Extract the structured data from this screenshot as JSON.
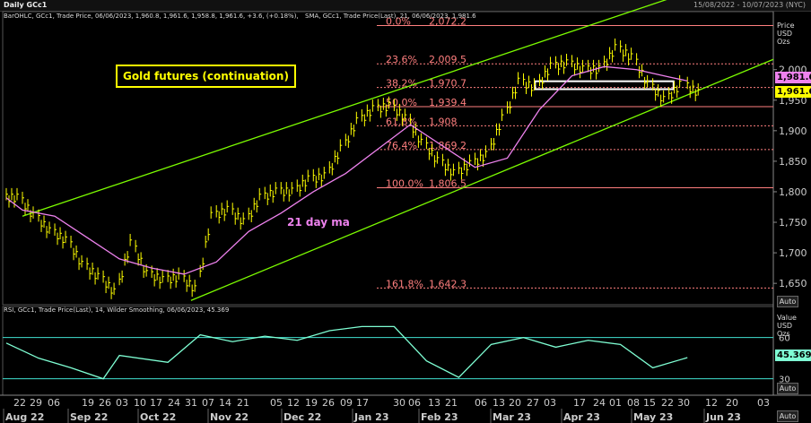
{
  "window": {
    "title": "Daily GCc1",
    "date_range": "15/08/2022 - 10/07/2023 (NYC)"
  },
  "price_panel": {
    "legend_bar": "BarOHLC, GCc1, Trade Price, 06/06/2023, 1,960.8, 1,961.6, 1,958.8, 1,961.6, +3.6, (+0.18%),",
    "legend_sma": "SMA, GCc1, Trade Price(Last), 21, 06/06/2023, 1,981.6",
    "axis_title": [
      "Price",
      "USD",
      "Ozs"
    ],
    "sma_value_badge": "1,981.6",
    "price_value_badge": "1,961.6",
    "auto_label": "Auto",
    "annotation": "Gold futures (continuation)",
    "ma_label": "21 day ma"
  },
  "rsi_panel": {
    "legend": "RSI, GCc1, Trade Price(Last), 14, Wilder Smoothing, 06/06/2023, 45.369",
    "axis_title": [
      "Value",
      "USD",
      "Ozs"
    ],
    "value_badge": "45.369",
    "auto_label": "Auto"
  },
  "x_auto_label": "Auto",
  "colors": {
    "price_bars": "#ffff00",
    "sma": "#ee82ee",
    "channel": "#7CFC00",
    "fib": "#ff7f7f",
    "rsi": "#7fffd4",
    "rsi_levels": "#40e0d0"
  },
  "chart_data": [
    {
      "type": "ohlc",
      "title": "Gold futures (continuation)",
      "y_ticks": [
        1650,
        1700,
        1750,
        1800,
        1850,
        1900,
        1950,
        2000
      ],
      "y_tick_labels": [
        "1,650",
        "1,700",
        "1,750",
        "1,800",
        "1,850",
        "1,900",
        "1,950",
        "2,000"
      ],
      "ylim": [
        1615,
        2095
      ],
      "x_day_labels": [
        "22",
        "29",
        "06",
        "19",
        "26",
        "03",
        "10",
        "17",
        "24",
        "31",
        "07",
        "14",
        "21",
        "05",
        "12",
        "19",
        "26",
        "09",
        "17",
        "30",
        "06",
        "13",
        "21",
        "06",
        "13",
        "20",
        "27",
        "03",
        "17",
        "24",
        "01",
        "08",
        "15",
        "22",
        "30",
        "12",
        "20",
        "03"
      ],
      "x_month_labels": [
        "Aug 22",
        "Sep 22",
        "Oct 22",
        "Nov 22",
        "Dec 22",
        "Jan 23",
        "Feb 23",
        "Mar 23",
        "Apr 23",
        "May 23",
        "Jun 23"
      ],
      "fibonacci": [
        {
          "label": "0.0%",
          "value": 2072.2,
          "value_text": "2,072.2"
        },
        {
          "label": "23.6%",
          "value": 2009.5,
          "value_text": "2,009.5"
        },
        {
          "label": "38.2%",
          "value": 1970.7,
          "value_text": "1,970.7"
        },
        {
          "label": "50.0%",
          "value": 1939.4,
          "value_text": "1,939.4"
        },
        {
          "label": "61.8%",
          "value": 1908,
          "value_text": "1,908"
        },
        {
          "label": "76.4%",
          "value": 1869.2,
          "value_text": "1,869.2"
        },
        {
          "label": "100.0%",
          "value": 1806.5,
          "value_text": "1,806.5"
        },
        {
          "label": "161.8%",
          "value": 1642.3,
          "value_text": "1,642.3"
        }
      ],
      "channel": {
        "upper": [
          [
            "2022-08-22",
            1760
          ],
          [
            "2023-05-10",
            2092
          ]
        ],
        "lower": [
          [
            "2022-11-03",
            1622
          ],
          [
            "2023-06-12",
            1968
          ]
        ]
      },
      "resistance_box": {
        "x_from": "2023-04-01",
        "x_to": "2023-05-31",
        "y_from": 1968,
        "y_to": 1981
      },
      "series": [
        {
          "name": "BarOHLC",
          "x": [
            "2022-08-15",
            "2022-08-22",
            "2022-08-29",
            "2022-09-05",
            "2022-09-12",
            "2022-09-19",
            "2022-09-26",
            "2022-10-03",
            "2022-10-10",
            "2022-10-17",
            "2022-10-24",
            "2022-10-31",
            "2022-11-07",
            "2022-11-14",
            "2022-11-21",
            "2022-11-28",
            "2022-12-05",
            "2022-12-12",
            "2022-12-19",
            "2022-12-26",
            "2023-01-02",
            "2023-01-09",
            "2023-01-16",
            "2023-01-23",
            "2023-01-30",
            "2023-02-06",
            "2023-02-13",
            "2023-02-20",
            "2023-02-27",
            "2023-03-06",
            "2023-03-13",
            "2023-03-20",
            "2023-03-27",
            "2023-04-03",
            "2023-04-10",
            "2023-04-17",
            "2023-04-24",
            "2023-05-01",
            "2023-05-08",
            "2023-05-15",
            "2023-05-22",
            "2023-05-29",
            "2023-06-06"
          ],
          "close": [
            1790,
            1760,
            1735,
            1720,
            1680,
            1660,
            1635,
            1715,
            1665,
            1655,
            1660,
            1640,
            1760,
            1770,
            1750,
            1790,
            1800,
            1800,
            1820,
            1825,
            1870,
            1915,
            1935,
            1940,
            1920,
            1880,
            1850,
            1830,
            1845,
            1860,
            1920,
            1980,
            1970,
            2005,
            2010,
            2000,
            2000,
            2035,
            2020,
            1975,
            1950,
            1975,
            1961.6
          ]
        },
        {
          "name": "SMA 21",
          "x": [
            "2022-08-15",
            "2022-08-22",
            "2022-09-05",
            "2022-09-19",
            "2022-10-03",
            "2022-10-17",
            "2022-10-31",
            "2022-11-14",
            "2022-11-28",
            "2022-12-12",
            "2022-12-26",
            "2023-01-09",
            "2023-01-23",
            "2023-02-06",
            "2023-02-20",
            "2023-03-06",
            "2023-03-20",
            "2023-04-03",
            "2023-04-17",
            "2023-05-01",
            "2023-05-15",
            "2023-05-29",
            "2023-06-06"
          ],
          "values": [
            1790,
            1770,
            1760,
            1725,
            1690,
            1675,
            1665,
            1685,
            1735,
            1765,
            1800,
            1830,
            1870,
            1910,
            1875,
            1840,
            1855,
            1935,
            1990,
            2005,
            2000,
            1988,
            1981.6
          ]
        }
      ]
    },
    {
      "type": "line",
      "title": "RSI 14",
      "y_ticks": [
        30,
        60
      ],
      "ylim": [
        20,
        80
      ],
      "series": [
        {
          "name": "RSI",
          "x": [
            "2022-08-15",
            "2022-08-29",
            "2022-09-12",
            "2022-09-26",
            "2022-10-03",
            "2022-10-24",
            "2022-11-07",
            "2022-11-21",
            "2022-12-05",
            "2022-12-19",
            "2023-01-02",
            "2023-01-16",
            "2023-01-30",
            "2023-02-13",
            "2023-02-27",
            "2023-03-13",
            "2023-03-27",
            "2023-04-10",
            "2023-04-24",
            "2023-05-08",
            "2023-05-22",
            "2023-06-06"
          ],
          "values": [
            56,
            45,
            38,
            30,
            47,
            42,
            62,
            57,
            61,
            58,
            65,
            68,
            68,
            43,
            31,
            55,
            60,
            53,
            58,
            55,
            38,
            45.4
          ]
        }
      ],
      "levels": [
        30,
        60
      ]
    }
  ]
}
